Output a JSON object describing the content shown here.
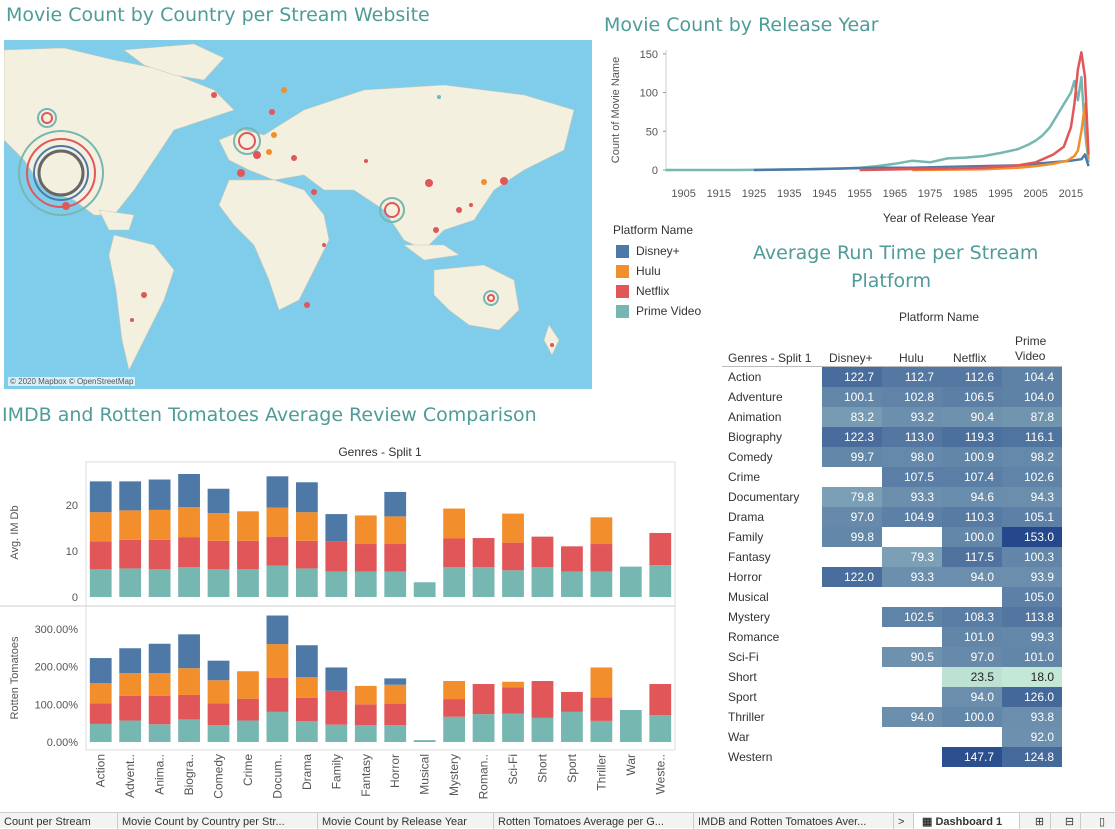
{
  "titles": {
    "map": "Movie Count by Country per Stream Website",
    "release": "Movie Count by Release Year",
    "runtime_line1": "Average Run Time per Stream",
    "runtime_line2": "Platform",
    "reviews": "IMDB and Rotten Tomatoes Average Review Comparison"
  },
  "map": {
    "attribution": "© 2020 Mapbox © OpenStreetMap"
  },
  "colors": {
    "disney": "#4e79a7",
    "hulu": "#f28e2b",
    "netflix": "#e15759",
    "prime": "#76b7b2",
    "title": "#4e9c9a",
    "water": "#7fcdea",
    "land": "#f3f0e0"
  },
  "legend": {
    "title": "Platform Name",
    "items": [
      {
        "label": "Disney+",
        "color": "#4e79a7"
      },
      {
        "label": "Hulu",
        "color": "#f28e2b"
      },
      {
        "label": "Netflix",
        "color": "#e15759"
      },
      {
        "label": "Prime Video",
        "color": "#76b7b2"
      }
    ]
  },
  "chart_data": [
    {
      "type": "line",
      "title": "Movie Count by Release Year",
      "xlabel": "Year of Release Year",
      "ylabel": "Count of Movie Name",
      "x_ticks": [
        "1905",
        "1915",
        "1925",
        "1935",
        "1945",
        "1955",
        "1965",
        "1975",
        "1985",
        "1995",
        "2005",
        "2015"
      ],
      "y_ticks": [
        "0",
        "50",
        "100",
        "150"
      ],
      "xlim": [
        1900,
        2021
      ],
      "ylim": [
        0,
        155
      ],
      "series": [
        {
          "name": "Prime Video",
          "color": "#76b7b2",
          "points": [
            [
              1900,
              0
            ],
            [
              1920,
              0
            ],
            [
              1940,
              1
            ],
            [
              1950,
              2
            ],
            [
              1955,
              3
            ],
            [
              1960,
              5
            ],
            [
              1965,
              8
            ],
            [
              1970,
              12
            ],
            [
              1975,
              10
            ],
            [
              1980,
              15
            ],
            [
              1985,
              16
            ],
            [
              1990,
              18
            ],
            [
              1995,
              22
            ],
            [
              2000,
              27
            ],
            [
              2003,
              33
            ],
            [
              2005,
              38
            ],
            [
              2007,
              45
            ],
            [
              2009,
              55
            ],
            [
              2011,
              70
            ],
            [
              2013,
              85
            ],
            [
              2015,
              100
            ],
            [
              2016,
              115
            ],
            [
              2017,
              90
            ],
            [
              2018,
              120
            ],
            [
              2019,
              50
            ],
            [
              2020,
              10
            ]
          ]
        },
        {
          "name": "Disney+",
          "color": "#4e79a7",
          "points": [
            [
              1925,
              0
            ],
            [
              1940,
              1
            ],
            [
              1950,
              2
            ],
            [
              1960,
              3
            ],
            [
              1970,
              3
            ],
            [
              1980,
              4
            ],
            [
              1990,
              5
            ],
            [
              2000,
              6
            ],
            [
              2005,
              8
            ],
            [
              2010,
              10
            ],
            [
              2015,
              12
            ],
            [
              2018,
              14
            ],
            [
              2019,
              20
            ],
            [
              2020,
              5
            ]
          ]
        },
        {
          "name": "Hulu",
          "color": "#f28e2b",
          "points": [
            [
              1970,
              0
            ],
            [
              1990,
              1
            ],
            [
              2000,
              3
            ],
            [
              2005,
              5
            ],
            [
              2010,
              8
            ],
            [
              2014,
              12
            ],
            [
              2016,
              18
            ],
            [
              2017,
              25
            ],
            [
              2018,
              50
            ],
            [
              2019,
              85
            ],
            [
              2020,
              15
            ]
          ]
        },
        {
          "name": "Netflix",
          "color": "#e15759",
          "points": [
            [
              1955,
              0
            ],
            [
              1980,
              2
            ],
            [
              1990,
              3
            ],
            [
              2000,
              6
            ],
            [
              2005,
              10
            ],
            [
              2010,
              20
            ],
            [
              2013,
              30
            ],
            [
              2015,
              55
            ],
            [
              2016,
              85
            ],
            [
              2017,
              130
            ],
            [
              2018,
              152
            ],
            [
              2019,
              120
            ],
            [
              2020,
              20
            ]
          ]
        }
      ]
    },
    {
      "type": "bar",
      "title": "IMDB and Rotten Tomatoes Average Review Comparison",
      "subtitle": "Genres - Split 1",
      "stacked": true,
      "categories": [
        "Action",
        "Advent..",
        "Anima..",
        "Biogra..",
        "Comedy",
        "Crime",
        "Docum..",
        "Drama",
        "Family",
        "Fantasy",
        "Horror",
        "Musical",
        "Mystery",
        "Roman..",
        "Sci-Fi",
        "Short",
        "Sport",
        "Thriller",
        "War",
        "Weste.."
      ],
      "panels": [
        {
          "ylabel": "Avg. IM Db",
          "y_ticks": [
            "0",
            "10",
            "20"
          ],
          "ylim": [
            0,
            28
          ],
          "series": [
            {
              "name": "Prime Video",
              "values": [
                6.0,
                6.2,
                6.0,
                6.5,
                6.0,
                6.0,
                6.8,
                6.2,
                5.5,
                5.5,
                5.5,
                3.2,
                6.5,
                6.5,
                5.8,
                6.5,
                5.5,
                5.5,
                6.6,
                6.9
              ]
            },
            {
              "name": "Netflix",
              "values": [
                6.1,
                6.2,
                6.4,
                6.5,
                6.2,
                6.2,
                6.3,
                6.0,
                6.5,
                6.0,
                6.0,
                0,
                6.2,
                6.3,
                6.0,
                6.6,
                5.5,
                6.0,
                0,
                7.0
              ]
            },
            {
              "name": "Hulu",
              "values": [
                6.3,
                6.4,
                6.5,
                6.5,
                6.0,
                6.4,
                6.3,
                6.2,
                0,
                6.2,
                6.0,
                0,
                6.5,
                0,
                6.3,
                0,
                0,
                5.8,
                0,
                0
              ]
            },
            {
              "name": "Disney+",
              "values": [
                6.7,
                6.3,
                6.6,
                7.2,
                5.3,
                0,
                6.8,
                6.5,
                6.0,
                0,
                5.3,
                0,
                0,
                0,
                0,
                0,
                0,
                0,
                0,
                0
              ]
            }
          ]
        },
        {
          "ylabel": "Rotten Tomatoes",
          "y_ticks": [
            "0.00%",
            "100.00%",
            "200.00%",
            "300.00%"
          ],
          "ylim": [
            0,
            3.4
          ],
          "series": [
            {
              "name": "Prime Video",
              "values": [
                0.48,
                0.57,
                0.47,
                0.6,
                0.45,
                0.57,
                0.8,
                0.55,
                0.46,
                0.45,
                0.45,
                0.05,
                0.67,
                0.74,
                0.75,
                0.64,
                0.8,
                0.56,
                0.85,
                0.71
              ]
            },
            {
              "name": "Netflix",
              "values": [
                0.55,
                0.66,
                0.76,
                0.65,
                0.58,
                0.58,
                0.9,
                0.62,
                0.9,
                0.55,
                0.57,
                0,
                0.47,
                0.8,
                0.7,
                0.98,
                0.53,
                0.62,
                0,
                0.83
              ]
            },
            {
              "name": "Hulu",
              "values": [
                0.53,
                0.6,
                0.6,
                0.71,
                0.61,
                0.73,
                0.9,
                0.55,
                0,
                0.49,
                0.5,
                0,
                0.48,
                0,
                0.15,
                0,
                0,
                0.8,
                0,
                0
              ]
            },
            {
              "name": "Disney+",
              "values": [
                0.67,
                0.66,
                0.78,
                0.9,
                0.52,
                0,
                0.76,
                0.85,
                0.62,
                0,
                0.17,
                0,
                0,
                0,
                0,
                0,
                0,
                0,
                0,
                0
              ]
            }
          ]
        }
      ]
    },
    {
      "type": "heatmap",
      "title": "Average Run Time per Stream Platform",
      "column_group_label": "Platform Name",
      "row_header": "Genres - Split 1",
      "columns": [
        "Disney+",
        "Hulu",
        "Netflix",
        "Prime Video"
      ],
      "rows": [
        {
          "genre": "Action",
          "values": [
            "122.7",
            "112.7",
            "112.6",
            "104.4"
          ]
        },
        {
          "genre": "Adventure",
          "values": [
            "100.1",
            "102.8",
            "106.5",
            "104.0"
          ]
        },
        {
          "genre": "Animation",
          "values": [
            "83.2",
            "93.2",
            "90.4",
            "87.8"
          ]
        },
        {
          "genre": "Biography",
          "values": [
            "122.3",
            "113.0",
            "119.3",
            "116.1"
          ]
        },
        {
          "genre": "Comedy",
          "values": [
            "99.7",
            "98.0",
            "100.9",
            "98.2"
          ]
        },
        {
          "genre": "Crime",
          "values": [
            "",
            "107.5",
            "107.4",
            "102.6"
          ]
        },
        {
          "genre": "Documentary",
          "values": [
            "79.8",
            "93.3",
            "94.6",
            "94.3"
          ]
        },
        {
          "genre": "Drama",
          "values": [
            "97.0",
            "104.9",
            "110.3",
            "105.1"
          ]
        },
        {
          "genre": "Family",
          "values": [
            "99.8",
            "",
            "100.0",
            "153.0"
          ]
        },
        {
          "genre": "Fantasy",
          "values": [
            "",
            "79.3",
            "117.5",
            "100.3"
          ]
        },
        {
          "genre": "Horror",
          "values": [
            "122.0",
            "93.3",
            "94.0",
            "93.9"
          ]
        },
        {
          "genre": "Musical",
          "values": [
            "",
            "",
            "",
            "105.0"
          ]
        },
        {
          "genre": "Mystery",
          "values": [
            "",
            "102.5",
            "108.3",
            "113.8"
          ]
        },
        {
          "genre": "Romance",
          "values": [
            "",
            "",
            "101.0",
            "99.3"
          ]
        },
        {
          "genre": "Sci-Fi",
          "values": [
            "",
            "90.5",
            "97.0",
            "101.0"
          ]
        },
        {
          "genre": "Short",
          "values": [
            "",
            "",
            "23.5",
            "18.0"
          ]
        },
        {
          "genre": "Sport",
          "values": [
            "",
            "",
            "94.0",
            "126.0"
          ]
        },
        {
          "genre": "Thriller",
          "values": [
            "",
            "94.0",
            "100.0",
            "93.8"
          ]
        },
        {
          "genre": "War",
          "values": [
            "",
            "",
            "",
            "92.0"
          ]
        },
        {
          "genre": "Western",
          "values": [
            "",
            "",
            "147.7",
            "124.8"
          ]
        }
      ]
    }
  ],
  "heat_headers": {
    "group": "Platform Name",
    "row_header": "Genres - Split 1",
    "col1": "Disney+",
    "col2": "Hulu",
    "col3": "Netflix",
    "col4_line1": "Prime",
    "col4_line2": "Video"
  },
  "tabs": [
    {
      "label": "Count per Stream"
    },
    {
      "label": "Movie Count by Country per Str..."
    },
    {
      "label": "Movie Count by Release Year"
    },
    {
      "label": "Rotten Tomatoes Average per G..."
    },
    {
      "label": "IMDB and Rotten Tomatoes Aver..."
    },
    {
      "label": ">"
    },
    {
      "label": "Dashboard 1"
    }
  ]
}
